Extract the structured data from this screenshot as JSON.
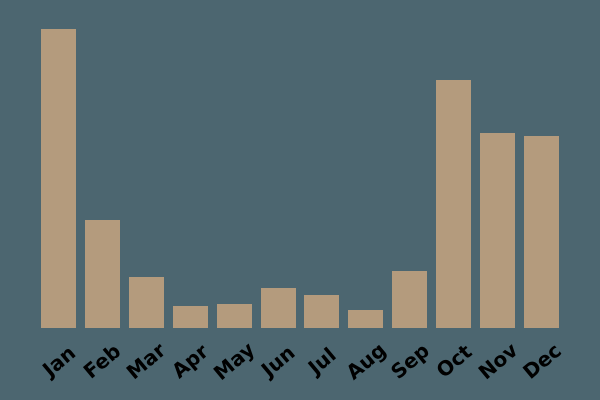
{
  "chart_data": {
    "type": "bar",
    "categories": [
      "Jan",
      "Feb",
      "Mar",
      "Apr",
      "May",
      "Jun",
      "Jul",
      "Aug",
      "Sep",
      "Oct",
      "Nov",
      "Dec"
    ],
    "values": [
      100,
      36.1,
      17,
      7.5,
      8,
      13.4,
      11.1,
      6.1,
      19.2,
      83.1,
      65.1,
      64.2
    ],
    "title": "",
    "xlabel": "",
    "ylabel": "",
    "ylim": [
      0,
      110
    ],
    "grid": false,
    "legend": false,
    "axes_visible": false,
    "tick_label_rotation_deg": -40
  },
  "colors": {
    "background": "#4c6670",
    "bar": "#b49b7d",
    "tick_label": "#000000"
  }
}
